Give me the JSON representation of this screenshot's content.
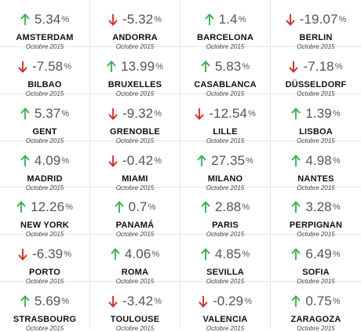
{
  "colors": {
    "up": "#2db14a",
    "down": "#e0201a",
    "text": "#555555",
    "divider": "#e6e6e6"
  },
  "cities": [
    {
      "name": "AMSTERDAM",
      "value": "5.34",
      "unit": "%",
      "period": "Octobre 2015",
      "trend": "up"
    },
    {
      "name": "ANDORRA",
      "value": "-5.32",
      "unit": "%",
      "period": "Octobre 2015",
      "trend": "down"
    },
    {
      "name": "BARCELONA",
      "value": "1.4",
      "unit": "%",
      "period": "Octobre 2015",
      "trend": "up"
    },
    {
      "name": "BERLIN",
      "value": "-19.07",
      "unit": "%",
      "period": "Octobre 2015",
      "trend": "down"
    },
    {
      "name": "BILBAO",
      "value": "-7.58",
      "unit": "%",
      "period": "Octobre 2015",
      "trend": "down"
    },
    {
      "name": "BRUXELLES",
      "value": "13.99",
      "unit": "%",
      "period": "Octobre 2015",
      "trend": "up"
    },
    {
      "name": "CASABLANCA",
      "value": "5.83",
      "unit": "%",
      "period": "Octobre 2015",
      "trend": "up"
    },
    {
      "name": "DÜSSELDORF",
      "value": "-7.18",
      "unit": "%",
      "period": "Octobre 2015",
      "trend": "down"
    },
    {
      "name": "GENT",
      "value": "5.37",
      "unit": "%",
      "period": "Octobre 2015",
      "trend": "up"
    },
    {
      "name": "GRENOBLE",
      "value": "-9.32",
      "unit": "%",
      "period": "Octobre 2015",
      "trend": "down"
    },
    {
      "name": "LILLE",
      "value": "-12.54",
      "unit": "%",
      "period": "Octobre 2015",
      "trend": "down"
    },
    {
      "name": "LISBOA",
      "value": "1.39",
      "unit": "%",
      "period": "Octobre 2015",
      "trend": "up"
    },
    {
      "name": "MADRID",
      "value": "4.09",
      "unit": "%",
      "period": "Octobre 2015",
      "trend": "up"
    },
    {
      "name": "MIAMI",
      "value": "-0.42",
      "unit": "%",
      "period": "Octobre 2015",
      "trend": "down"
    },
    {
      "name": "MILANO",
      "value": "27.35",
      "unit": "%",
      "period": "Octobre 2015",
      "trend": "up"
    },
    {
      "name": "NANTES",
      "value": "4.98",
      "unit": "%",
      "period": "Octobre 2015",
      "trend": "up"
    },
    {
      "name": "NEW YORK",
      "value": "12.26",
      "unit": "%",
      "period": "Octobre 2015",
      "trend": "up"
    },
    {
      "name": "PANAMÁ",
      "value": "0.7",
      "unit": "%",
      "period": "Octobre 2015",
      "trend": "up"
    },
    {
      "name": "PARIS",
      "value": "2.88",
      "unit": "%",
      "period": "Octobre 2015",
      "trend": "up"
    },
    {
      "name": "PERPIGNAN",
      "value": "3.28",
      "unit": "%",
      "period": "Octobre 2015",
      "trend": "up"
    },
    {
      "name": "PORTO",
      "value": "-6.39",
      "unit": "%",
      "period": "Octobre 2015",
      "trend": "down"
    },
    {
      "name": "ROMA",
      "value": "4.06",
      "unit": "%",
      "period": "Octobre 2015",
      "trend": "up"
    },
    {
      "name": "SEVILLA",
      "value": "4.85",
      "unit": "%",
      "period": "Octobre 2015",
      "trend": "up"
    },
    {
      "name": "SOFIA",
      "value": "6.49",
      "unit": "%",
      "period": "Octobre 2015",
      "trend": "up"
    },
    {
      "name": "STRASBOURG",
      "value": "5.69",
      "unit": "%",
      "period": "Octobre 2015",
      "trend": "up"
    },
    {
      "name": "TOULOUSE",
      "value": "-3.42",
      "unit": "%",
      "period": "Octobre 2015",
      "trend": "down"
    },
    {
      "name": "VALENCIA",
      "value": "-0.29",
      "unit": "%",
      "period": "Octobre 2015",
      "trend": "down"
    },
    {
      "name": "ZARAGOZA",
      "value": "0.75",
      "unit": "%",
      "period": "Octobre 2015",
      "trend": "up"
    }
  ]
}
